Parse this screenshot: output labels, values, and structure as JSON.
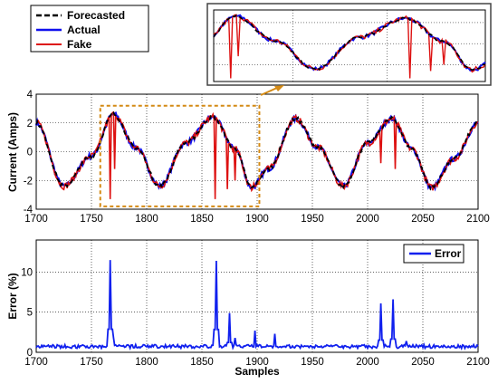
{
  "colors": {
    "forecasted": "#000000",
    "actual": "#1010ee",
    "fake": "#dd1111",
    "error": "#1020ee",
    "highlight": "#d48a14"
  },
  "chart_data": [
    {
      "type": "line",
      "xlabel": "",
      "ylabel": "Current (Amps)",
      "xlim": [
        1700,
        2100
      ],
      "ylim": [
        -4,
        4
      ],
      "xticks": [
        "1700",
        "1750",
        "1800",
        "1850",
        "1900",
        "1950",
        "2000",
        "2050",
        "2100"
      ],
      "yticks": [
        "4",
        "2",
        "0",
        "-2",
        "-4"
      ],
      "grid": true,
      "legend_position": "top-left, outside plot",
      "series": [
        {
          "name": "Forecasted",
          "style": "dashed",
          "points": [
            [
              1700,
              2.0
            ],
            [
              1725,
              -2.4
            ],
            [
              1750,
              -0.3
            ],
            [
              1770,
              2.6
            ],
            [
              1790,
              0.3
            ],
            [
              1812,
              -2.4
            ],
            [
              1835,
              0.6
            ],
            [
              1860,
              2.4
            ],
            [
              1880,
              0.2
            ],
            [
              1895,
              -2.5
            ],
            [
              1910,
              -1.2
            ],
            [
              1935,
              2.3
            ],
            [
              1955,
              0.3
            ],
            [
              1978,
              -2.4
            ],
            [
              2000,
              0.6
            ],
            [
              2022,
              2.3
            ],
            [
              2040,
              0.2
            ],
            [
              2058,
              -2.5
            ],
            [
              2078,
              -0.5
            ],
            [
              2100,
              2.0
            ]
          ]
        },
        {
          "name": "Actual",
          "style": "solid",
          "points": [
            [
              1700,
              2.0
            ],
            [
              1725,
              -2.4
            ],
            [
              1750,
              -0.3
            ],
            [
              1770,
              2.6
            ],
            [
              1790,
              0.3
            ],
            [
              1812,
              -2.4
            ],
            [
              1835,
              0.6
            ],
            [
              1860,
              2.4
            ],
            [
              1880,
              0.2
            ],
            [
              1895,
              -2.5
            ],
            [
              1910,
              -1.2
            ],
            [
              1935,
              2.3
            ],
            [
              1955,
              0.3
            ],
            [
              1978,
              -2.4
            ],
            [
              2000,
              0.6
            ],
            [
              2022,
              2.3
            ],
            [
              2040,
              0.2
            ],
            [
              2058,
              -2.5
            ],
            [
              2078,
              -0.5
            ],
            [
              2100,
              2.0
            ]
          ]
        },
        {
          "name": "Fake",
          "style": "solid",
          "spikes": [
            [
              1767,
              -3.3
            ],
            [
              1771,
              -1.2
            ],
            [
              1862,
              -3.3
            ],
            [
              1873,
              -2.6
            ],
            [
              1880,
              -2.0
            ],
            [
              1897,
              -2.2
            ],
            [
              2012,
              -0.8
            ],
            [
              2025,
              -1.2
            ]
          ]
        }
      ],
      "highlight_box_x": [
        1758,
        1902
      ],
      "highlight_box_y": [
        -3.8,
        3.2
      ]
    },
    {
      "type": "line",
      "xlabel": "Samples",
      "ylabel": "Error (%)",
      "xlim": [
        1700,
        2100
      ],
      "ylim": [
        0,
        14
      ],
      "xticks": [
        "1700",
        "1750",
        "1800",
        "1850",
        "1900",
        "1950",
        "2000",
        "2050",
        "2100"
      ],
      "yticks": [
        "10",
        "5",
        "0"
      ],
      "grid": true,
      "legend_position": "top-right",
      "series": [
        {
          "name": "Error",
          "peaks": [
            [
              1767,
              11.5
            ],
            [
              1770,
              1.8
            ],
            [
              1863,
              11.4
            ],
            [
              1875,
              4.9
            ],
            [
              1880,
              1.8
            ],
            [
              1898,
              2.7
            ],
            [
              1916,
              2.3
            ],
            [
              2012,
              6.1
            ],
            [
              2023,
              6.6
            ],
            [
              2035,
              1.4
            ]
          ],
          "baseline": 0.5
        }
      ]
    }
  ],
  "inset": {
    "x_range": [
      1758,
      1902
    ]
  }
}
